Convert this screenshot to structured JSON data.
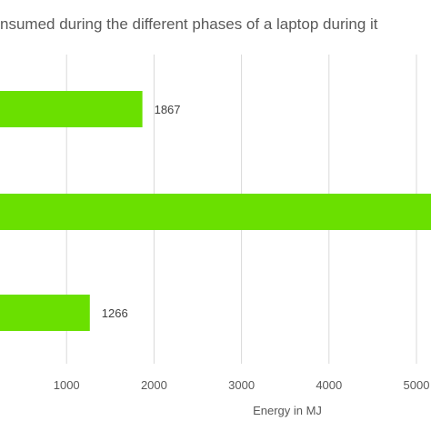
{
  "chart_data": {
    "type": "bar",
    "orientation": "horizontal",
    "title": "nsumed during the different phases of a laptop during it",
    "xlabel": "Energy in MJ",
    "ylabel": "",
    "xlim": [
      0,
      5000
    ],
    "x_ticks": [
      1000,
      2000,
      3000,
      4000,
      5000
    ],
    "x_tick_labels": [
      "1000",
      "2000",
      "3000",
      "4000",
      "5000"
    ],
    "categories": [
      "",
      "",
      ""
    ],
    "values": [
      1867,
      5500,
      1266
    ],
    "data_labels": [
      "1867",
      "",
      "1266"
    ],
    "bar_color": "#6ae000",
    "grid": true,
    "legend": "none"
  }
}
